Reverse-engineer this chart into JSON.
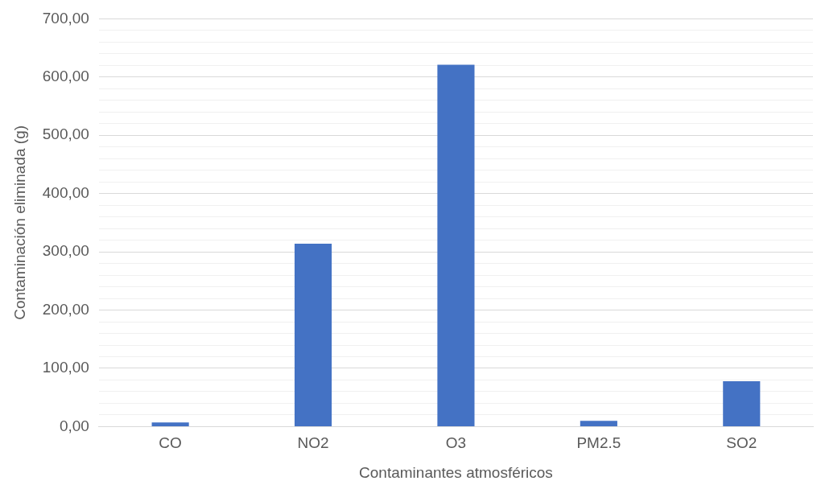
{
  "chart_data": {
    "type": "bar",
    "xlabel": "Contaminantes atmosféricos",
    "ylabel": "Contaminación eliminada (g)",
    "categories": [
      "CO",
      "NO2",
      "O3",
      "PM2.5",
      "SO2"
    ],
    "values": [
      7,
      314,
      621,
      10,
      78
    ],
    "color": "#4472c4",
    "ylim": [
      0,
      700
    ],
    "yticks": [
      {
        "value": 0,
        "label": "0,00"
      },
      {
        "value": 20,
        "label": null
      },
      {
        "value": 40,
        "label": null
      },
      {
        "value": 60,
        "label": null
      },
      {
        "value": 80,
        "label": null
      },
      {
        "value": 100,
        "label": "100,00"
      },
      {
        "value": 120,
        "label": null
      },
      {
        "value": 140,
        "label": null
      },
      {
        "value": 160,
        "label": null
      },
      {
        "value": 180,
        "label": null
      },
      {
        "value": 200,
        "label": "200,00"
      },
      {
        "value": 220,
        "label": null
      },
      {
        "value": 240,
        "label": null
      },
      {
        "value": 260,
        "label": null
      },
      {
        "value": 280,
        "label": null
      },
      {
        "value": 300,
        "label": "300,00"
      },
      {
        "value": 320,
        "label": null
      },
      {
        "value": 340,
        "label": null
      },
      {
        "value": 360,
        "label": null
      },
      {
        "value": 380,
        "label": null
      },
      {
        "value": 400,
        "label": "400,00"
      },
      {
        "value": 420,
        "label": null
      },
      {
        "value": 440,
        "label": null
      },
      {
        "value": 460,
        "label": null
      },
      {
        "value": 480,
        "label": null
      },
      {
        "value": 500,
        "label": "500,00"
      },
      {
        "value": 520,
        "label": null
      },
      {
        "value": 540,
        "label": null
      },
      {
        "value": 560,
        "label": null
      },
      {
        "value": 580,
        "label": null
      },
      {
        "value": 600,
        "label": "600,00"
      },
      {
        "value": 620,
        "label": null
      },
      {
        "value": 640,
        "label": null
      },
      {
        "value": 660,
        "label": null
      },
      {
        "value": 680,
        "label": null
      },
      {
        "value": 700,
        "label": "700,00"
      }
    ],
    "grid": true
  }
}
